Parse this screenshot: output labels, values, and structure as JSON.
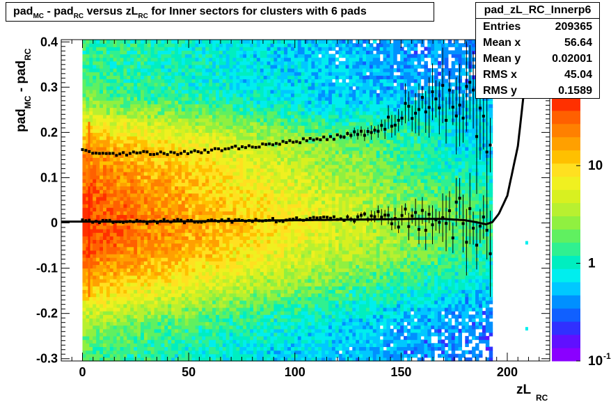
{
  "title": {
    "parts": [
      {
        "t": "pad"
      },
      {
        "t": "MC",
        "sub": true
      },
      {
        "t": " - pad"
      },
      {
        "t": "RC",
        "sub": true
      },
      {
        "t": " versus zL"
      },
      {
        "t": "RC",
        "sub": true
      },
      {
        "t": " for Inner sectors for clusters with 6 pads"
      }
    ]
  },
  "stats": {
    "name": "pad_zL_RC_Innerp6",
    "rows": [
      {
        "label": "Entries",
        "value": "209365"
      },
      {
        "label": "Mean x",
        "value": "56.64"
      },
      {
        "label": "Mean y",
        "value": "0.02001"
      },
      {
        "label": "RMS x",
        "value": "45.04"
      },
      {
        "label": "RMS y",
        "value": "0.1589"
      }
    ]
  },
  "chart_data": {
    "type": "heatmap",
    "title": "pad_MC - pad_RC versus zL_RC for Inner sectors for clusters with 6 pads",
    "xlabel_main": "zL",
    "xlabel_sub": "RC",
    "ylabel_main": "pad",
    "ylabel_sub1": "MC",
    "ylabel_mid": " - pad",
    "ylabel_sub2": "RC",
    "xlim": [
      -10,
      220
    ],
    "ylim": [
      -0.305,
      0.405
    ],
    "x_ticks": [
      0,
      50,
      100,
      150,
      200
    ],
    "x_tick_labels": [
      "0",
      "50",
      "100",
      "150",
      "200"
    ],
    "y_ticks": [
      -0.3,
      -0.2,
      -0.1,
      0,
      0.1,
      0.2,
      0.3,
      0.4
    ],
    "y_tick_labels": [
      "-0.3",
      "-0.2",
      "-0.1",
      "0",
      "0.1",
      "0.2",
      "0.3",
      "0.4"
    ],
    "data_x_range": [
      0,
      193
    ],
    "colorbar": {
      "scale": "log",
      "range": [
        0.1,
        50
      ],
      "tick_labels": [
        {
          "value": 0.1,
          "base": "10",
          "exp": "-1"
        },
        {
          "value": 1,
          "base": "1",
          "exp": ""
        },
        {
          "value": 10,
          "base": "10",
          "exp": ""
        }
      ]
    },
    "upper_profile": {
      "name": "upper band profile",
      "x": [
        0,
        10,
        20,
        30,
        40,
        50,
        60,
        70,
        80,
        90,
        100,
        110,
        120,
        130,
        140,
        150,
        160,
        170,
        180,
        190
      ],
      "y": [
        0.16,
        0.155,
        0.152,
        0.155,
        0.155,
        0.155,
        0.16,
        0.165,
        0.17,
        0.175,
        0.18,
        0.185,
        0.19,
        0.2,
        0.21,
        0.24,
        0.26,
        0.27,
        0.28,
        0.2
      ]
    },
    "lower_profile": {
      "name": "lower band profile",
      "x": [
        0,
        10,
        20,
        30,
        40,
        50,
        60,
        70,
        80,
        90,
        100,
        110,
        120,
        130,
        140,
        150,
        160,
        170,
        180,
        190
      ],
      "y": [
        0.005,
        0.003,
        0.003,
        0.003,
        0.004,
        0.004,
        0.005,
        0.005,
        0.007,
        0.006,
        0.008,
        0.01,
        0.01,
        0.01,
        0.012,
        0.01,
        0.01,
        0.01,
        0.0,
        -0.02
      ]
    },
    "fit_curve": {
      "name": "fit",
      "x": [
        -10,
        0,
        20,
        40,
        60,
        80,
        100,
        120,
        140,
        160,
        170,
        180,
        185,
        190,
        193,
        196,
        200,
        205,
        210
      ],
      "y": [
        0.003,
        0.003,
        0.003,
        0.003,
        0.004,
        0.005,
        0.006,
        0.007,
        0.008,
        0.009,
        0.009,
        0.006,
        0.002,
        -0.003,
        0.002,
        0.02,
        0.06,
        0.17,
        0.38
      ]
    }
  }
}
